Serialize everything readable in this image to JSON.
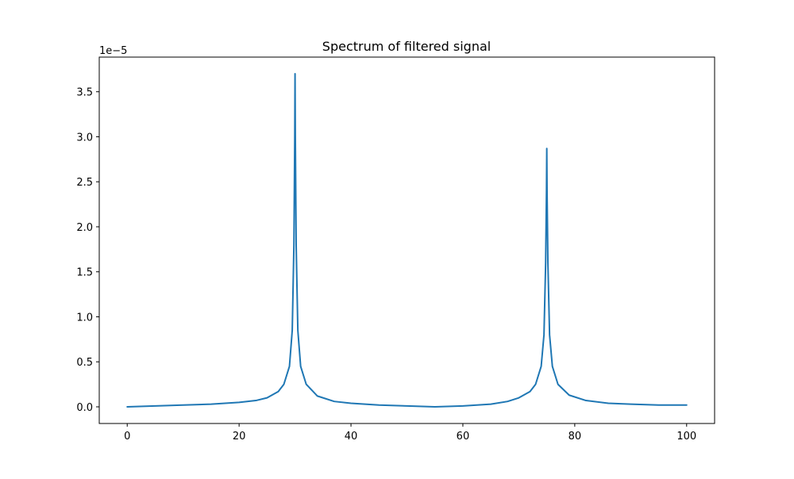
{
  "chart_data": {
    "type": "line",
    "title": "Spectrum of filtered signal",
    "xlabel": "",
    "ylabel": "",
    "y_offset_label": "1e−5",
    "xlim": [
      -5,
      105
    ],
    "ylim": [
      -0.185,
      3.885
    ],
    "x_ticks": [
      0,
      20,
      40,
      60,
      80,
      100
    ],
    "x_tick_labels": [
      "0",
      "20",
      "40",
      "60",
      "80",
      "100"
    ],
    "y_ticks": [
      0.0,
      0.5,
      1.0,
      1.5,
      2.0,
      2.5,
      3.0,
      3.5
    ],
    "y_tick_labels": [
      "0.0",
      "0.5",
      "1.0",
      "1.5",
      "2.0",
      "2.5",
      "3.0",
      "3.5"
    ],
    "grid": false,
    "legend": "none",
    "series_color": "#1f77b4",
    "y_scale_note": "y values in units of 1e-5",
    "series": [
      {
        "x": [
          0,
          5,
          10,
          15,
          20,
          23,
          25,
          27,
          28,
          29,
          29.5,
          29.8,
          29.95,
          30,
          30.05,
          30.2,
          30.5,
          31,
          32,
          34,
          37,
          40,
          45,
          50,
          55,
          60,
          65,
          68,
          70,
          72,
          73,
          74,
          74.5,
          74.8,
          74.95,
          75,
          75.05,
          75.2,
          75.5,
          76,
          77,
          79,
          82,
          86,
          90,
          95,
          100
        ],
        "y": [
          0.0,
          0.01,
          0.02,
          0.03,
          0.05,
          0.07,
          0.1,
          0.17,
          0.25,
          0.45,
          0.85,
          1.8,
          3.0,
          3.7,
          3.0,
          1.8,
          0.85,
          0.45,
          0.25,
          0.12,
          0.06,
          0.04,
          0.02,
          0.01,
          0.0,
          0.01,
          0.03,
          0.06,
          0.1,
          0.17,
          0.25,
          0.45,
          0.8,
          1.6,
          2.4,
          2.87,
          2.4,
          1.6,
          0.8,
          0.45,
          0.25,
          0.13,
          0.07,
          0.04,
          0.03,
          0.02,
          0.02
        ]
      }
    ]
  }
}
